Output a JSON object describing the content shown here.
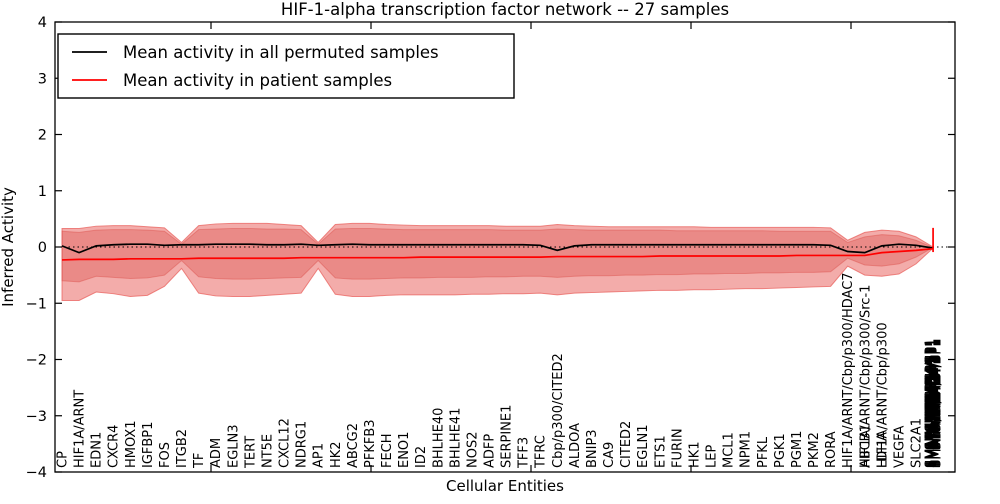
{
  "figure": {
    "title": "HIF-1-alpha transcription factor network -- 27 samples",
    "xlabel": "Cellular Entities",
    "ylabel": "Inferred Activity"
  },
  "legend": {
    "entries": [
      {
        "label": "Mean activity in all permuted samples",
        "color": "#000000"
      },
      {
        "label": "Mean activity in patient samples",
        "color": "#ff0000"
      }
    ]
  },
  "chart_data": {
    "type": "line",
    "title": "HIF-1-alpha transcription factor network -- 27 samples",
    "xlabel": "Cellular Entities",
    "ylabel": "Inferred Activity",
    "ylim": [
      -4,
      4
    ],
    "yticks": [
      4,
      3,
      2,
      1,
      0,
      -1,
      -2,
      -3,
      -4
    ],
    "grid": false,
    "legend_position": "upper left",
    "zero_baseline": 0,
    "x_tick_groups": [
      {
        "labels": [
          "CP"
        ]
      },
      {
        "labels": [
          "HIF1A/ARNT"
        ]
      },
      {
        "labels": [
          "EDN1"
        ]
      },
      {
        "labels": [
          "CXCR4"
        ]
      },
      {
        "labels": [
          "HMOX1"
        ]
      },
      {
        "labels": [
          "IGFBP1"
        ]
      },
      {
        "labels": [
          "FOS"
        ]
      },
      {
        "labels": [
          "ITGB2"
        ]
      },
      {
        "labels": [
          "TF"
        ]
      },
      {
        "labels": [
          "ADM"
        ]
      },
      {
        "labels": [
          "EGLN3"
        ]
      },
      {
        "labels": [
          "TERT"
        ]
      },
      {
        "labels": [
          "NT5E"
        ]
      },
      {
        "labels": [
          "CXCL12"
        ]
      },
      {
        "labels": [
          "NDRG1"
        ]
      },
      {
        "labels": [
          "AP1"
        ]
      },
      {
        "labels": [
          "HK2"
        ]
      },
      {
        "labels": [
          "ABCG2"
        ]
      },
      {
        "labels": [
          "PFKFB3"
        ]
      },
      {
        "labels": [
          "FECH"
        ]
      },
      {
        "labels": [
          "ENO1"
        ]
      },
      {
        "labels": [
          "ID2"
        ]
      },
      {
        "labels": [
          "BHLHE40"
        ]
      },
      {
        "labels": [
          "BHLHE41"
        ]
      },
      {
        "labels": [
          "NOS2"
        ]
      },
      {
        "labels": [
          "ADFP"
        ]
      },
      {
        "labels": [
          "SERPINE1"
        ]
      },
      {
        "labels": [
          "TFF3"
        ]
      },
      {
        "labels": [
          "TFRC"
        ]
      },
      {
        "labels": [
          "Cbp/p300/CITED2"
        ]
      },
      {
        "labels": [
          "ALDOA"
        ]
      },
      {
        "labels": [
          "BNIP3"
        ]
      },
      {
        "labels": [
          "CA9"
        ]
      },
      {
        "labels": [
          "CITED2"
        ]
      },
      {
        "labels": [
          "EGLN1"
        ]
      },
      {
        "labels": [
          "ETS1"
        ]
      },
      {
        "labels": [
          "FURIN"
        ]
      },
      {
        "labels": [
          "HK1"
        ]
      },
      {
        "labels": [
          "LEP"
        ]
      },
      {
        "labels": [
          "MCL1"
        ]
      },
      {
        "labels": [
          "NPM1"
        ]
      },
      {
        "labels": [
          "PFKL"
        ]
      },
      {
        "labels": [
          "PGK1"
        ]
      },
      {
        "labels": [
          "PGM1"
        ]
      },
      {
        "labels": [
          "PKM2"
        ]
      },
      {
        "labels": [
          "RORA"
        ]
      },
      {
        "labels": [
          "HIF1A/ARNT/Cbp/p300/HDAC7"
        ]
      },
      {
        "labels": [
          "ABCB1",
          "HIF1A/ARNT/Cbp/p300/Src-1"
        ]
      },
      {
        "labels": [
          "LDHA",
          "HIF1A/ARNT/Cbp/p300"
        ]
      },
      {
        "labels": [
          "VEGFA"
        ]
      },
      {
        "labels": [
          "SLC2A1"
        ]
      },
      {
        "labels": [
          "SMAD4/SP1"
        ],
        "blob": true
      }
    ],
    "series": [
      {
        "name": "Mean activity in all permuted samples",
        "color": "#000000",
        "values": [
          0.02,
          -0.1,
          0.02,
          0.04,
          0.05,
          0.05,
          0.03,
          0.04,
          0.04,
          0.05,
          0.05,
          0.05,
          0.04,
          0.04,
          0.05,
          0.03,
          0.04,
          0.05,
          0.04,
          0.04,
          0.04,
          0.04,
          0.04,
          0.04,
          0.04,
          0.04,
          0.04,
          0.04,
          0.03,
          -0.06,
          0.02,
          0.04,
          0.04,
          0.04,
          0.04,
          0.04,
          0.04,
          0.04,
          0.04,
          0.04,
          0.04,
          0.04,
          0.04,
          0.04,
          0.04,
          0.03,
          -0.08,
          -0.1,
          0.02,
          0.05,
          0.03,
          -0.02
        ]
      },
      {
        "name": "Mean activity in patient samples",
        "color": "#ff0000",
        "values": [
          -0.23,
          -0.22,
          -0.22,
          -0.22,
          -0.21,
          -0.21,
          -0.21,
          -0.21,
          -0.2,
          -0.2,
          -0.2,
          -0.2,
          -0.2,
          -0.2,
          -0.19,
          -0.19,
          -0.19,
          -0.19,
          -0.19,
          -0.19,
          -0.19,
          -0.18,
          -0.18,
          -0.18,
          -0.18,
          -0.18,
          -0.18,
          -0.18,
          -0.18,
          -0.17,
          -0.17,
          -0.17,
          -0.17,
          -0.17,
          -0.17,
          -0.16,
          -0.16,
          -0.16,
          -0.16,
          -0.16,
          -0.16,
          -0.16,
          -0.16,
          -0.15,
          -0.15,
          -0.15,
          -0.15,
          -0.15,
          -0.1,
          -0.08,
          -0.06,
          -0.03
        ]
      }
    ],
    "bands": [
      {
        "name": "outer-permutation-band",
        "top": [
          0.33,
          0.33,
          0.37,
          0.38,
          0.38,
          0.36,
          0.34,
          0.08,
          0.38,
          0.41,
          0.42,
          0.42,
          0.42,
          0.4,
          0.38,
          0.08,
          0.4,
          0.42,
          0.42,
          0.4,
          0.39,
          0.38,
          0.38,
          0.38,
          0.38,
          0.38,
          0.37,
          0.37,
          0.37,
          0.4,
          0.38,
          0.37,
          0.36,
          0.36,
          0.36,
          0.36,
          0.36,
          0.36,
          0.35,
          0.35,
          0.35,
          0.35,
          0.35,
          0.35,
          0.35,
          0.34,
          0.12,
          0.26,
          0.3,
          0.28,
          0.18,
          0.0
        ],
        "bottom": [
          -0.95,
          -0.95,
          -0.8,
          -0.83,
          -0.88,
          -0.86,
          -0.7,
          -0.38,
          -0.82,
          -0.87,
          -0.88,
          -0.88,
          -0.86,
          -0.84,
          -0.82,
          -0.38,
          -0.84,
          -0.88,
          -0.88,
          -0.86,
          -0.85,
          -0.85,
          -0.85,
          -0.85,
          -0.84,
          -0.84,
          -0.83,
          -0.83,
          -0.82,
          -0.85,
          -0.82,
          -0.81,
          -0.8,
          -0.79,
          -0.78,
          -0.77,
          -0.77,
          -0.76,
          -0.76,
          -0.75,
          -0.74,
          -0.74,
          -0.73,
          -0.72,
          -0.71,
          -0.7,
          -0.34,
          -0.5,
          -0.52,
          -0.48,
          -0.3,
          -0.02
        ]
      },
      {
        "name": "inner-permutation-band",
        "top": [
          0.28,
          0.26,
          0.3,
          0.31,
          0.31,
          0.3,
          0.28,
          0.05,
          0.31,
          0.32,
          0.33,
          0.33,
          0.32,
          0.32,
          0.31,
          0.05,
          0.32,
          0.33,
          0.33,
          0.32,
          0.31,
          0.31,
          0.31,
          0.31,
          0.31,
          0.31,
          0.3,
          0.3,
          0.3,
          0.32,
          0.31,
          0.3,
          0.3,
          0.3,
          0.3,
          0.3,
          0.29,
          0.29,
          0.29,
          0.29,
          0.29,
          0.29,
          0.28,
          0.28,
          0.28,
          0.28,
          0.08,
          0.18,
          0.22,
          0.2,
          0.12,
          -0.01
        ],
        "bottom": [
          -0.6,
          -0.62,
          -0.52,
          -0.54,
          -0.56,
          -0.55,
          -0.5,
          -0.24,
          -0.53,
          -0.56,
          -0.57,
          -0.57,
          -0.56,
          -0.55,
          -0.54,
          -0.24,
          -0.55,
          -0.57,
          -0.57,
          -0.56,
          -0.55,
          -0.55,
          -0.54,
          -0.54,
          -0.54,
          -0.53,
          -0.53,
          -0.52,
          -0.52,
          -0.54,
          -0.52,
          -0.51,
          -0.51,
          -0.5,
          -0.5,
          -0.49,
          -0.49,
          -0.48,
          -0.48,
          -0.47,
          -0.47,
          -0.46,
          -0.46,
          -0.45,
          -0.45,
          -0.44,
          -0.2,
          -0.32,
          -0.34,
          -0.3,
          -0.18,
          -0.01
        ]
      }
    ],
    "end_spike": {
      "index": 51,
      "from": -0.09,
      "to": 0.34,
      "color": "#ff0000"
    },
    "colors": {
      "band_outer": "#e85a55",
      "band_inner": "#d94540",
      "permuted_line": "#000000",
      "patient_line": "#ff0000",
      "baseline": "#000000"
    }
  }
}
